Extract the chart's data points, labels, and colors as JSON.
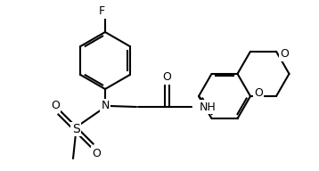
{
  "bg": "#ffffff",
  "lc": "#000000",
  "lw": 1.5,
  "fs": 8.5
}
